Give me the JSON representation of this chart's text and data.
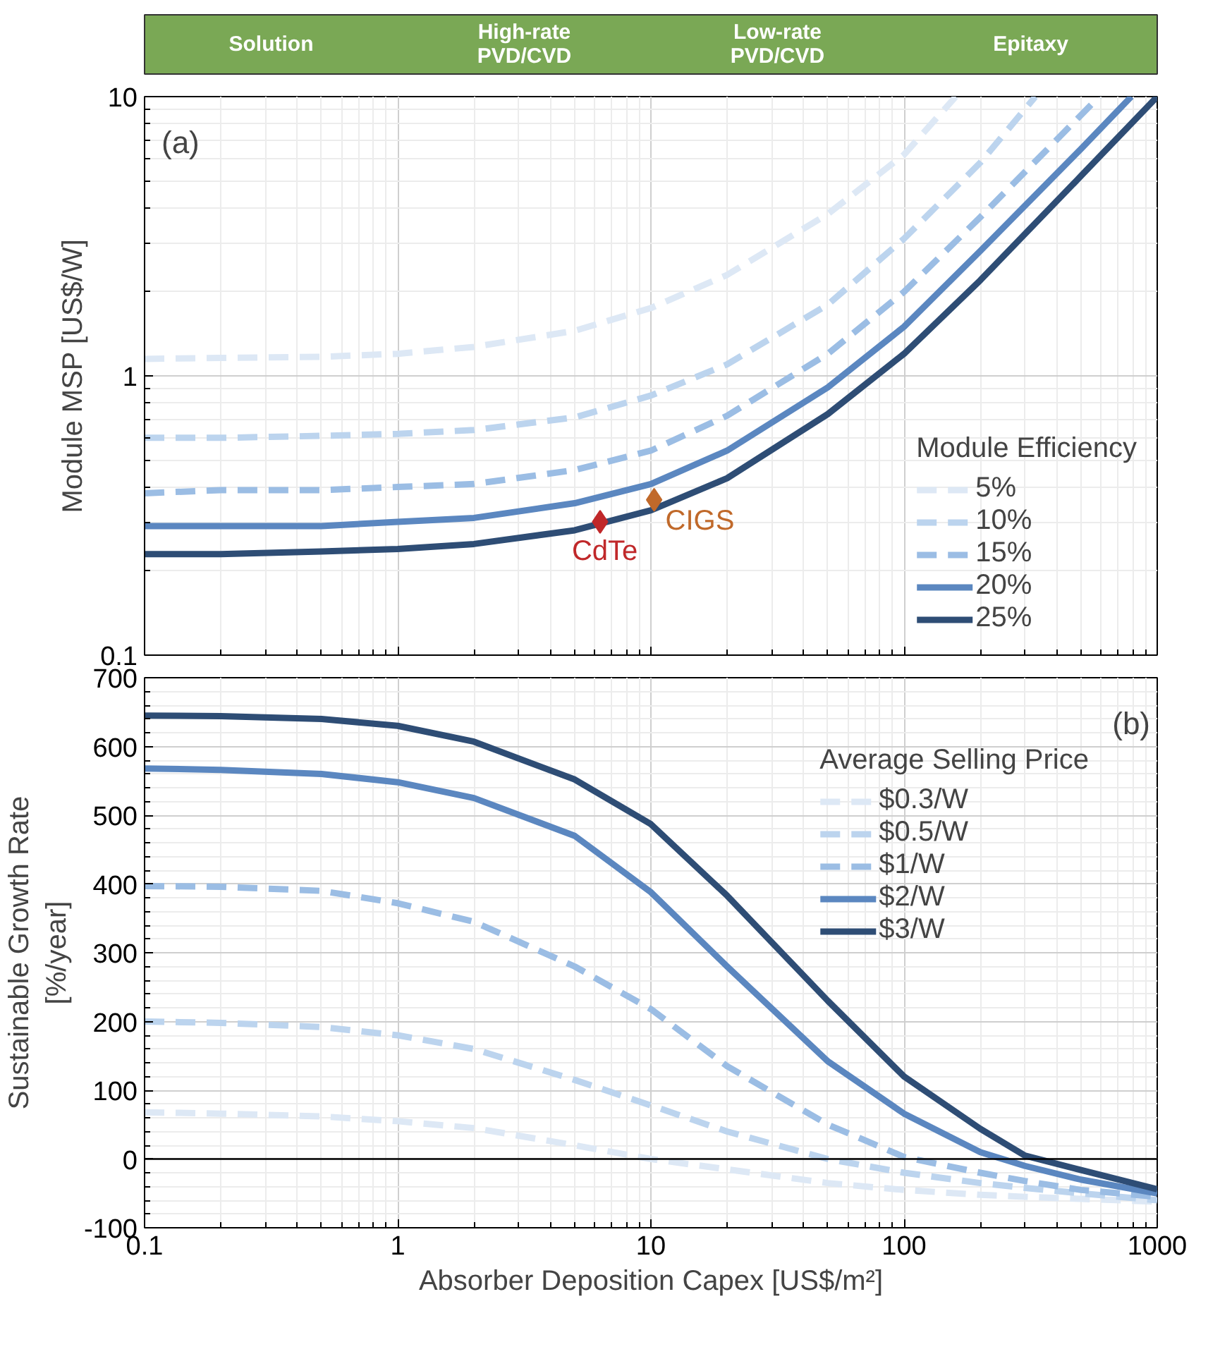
{
  "chart_data": [
    {
      "type": "other",
      "annotations": [
        "Solution",
        "High-rate\nPVD/CVD",
        "Low-rate\nPVD/CVD",
        "Epitaxy"
      ]
    },
    {
      "type": "line",
      "ylabel": "Module MSP [US$/W]",
      "log": "xy",
      "xlim": [
        0.1,
        1000
      ],
      "ylim": [
        0.1,
        10
      ],
      "xticks": [
        0.1,
        1,
        10,
        100,
        1000
      ],
      "yticks": [
        0.1,
        1,
        10
      ],
      "grid": true,
      "tick_labels": "y",
      "legend": "bottom right",
      "legend_title": "Module Efficiency",
      "annotations": [
        "(a)"
      ],
      "series": [
        {
          "name": "5%",
          "color": "#dde8f5",
          "line_style": "dashed",
          "x": [
            0.1,
            0.2,
            0.5,
            1,
            2,
            5,
            10,
            20,
            50,
            100,
            160
          ],
          "values": [
            1.15,
            1.16,
            1.17,
            1.2,
            1.27,
            1.45,
            1.75,
            2.3,
            3.8,
            6.2,
            10
          ]
        },
        {
          "name": "10%",
          "color": "#bcd4ee",
          "line_style": "dashed",
          "x": [
            0.1,
            0.2,
            0.5,
            1,
            2,
            5,
            10,
            20,
            50,
            100,
            200,
            330
          ],
          "values": [
            0.6,
            0.6,
            0.61,
            0.62,
            0.64,
            0.71,
            0.85,
            1.1,
            1.8,
            3.1,
            5.8,
            10
          ]
        },
        {
          "name": "15%",
          "color": "#9bbde4",
          "line_style": "dashed",
          "x": [
            0.1,
            0.2,
            0.5,
            1,
            2,
            5,
            10,
            20,
            50,
            100,
            200,
            590
          ],
          "values": [
            0.38,
            0.39,
            0.39,
            0.4,
            0.41,
            0.46,
            0.54,
            0.72,
            1.2,
            2.0,
            3.7,
            10
          ]
        },
        {
          "name": "20%",
          "color": "#5b87c0",
          "line_style": "solid",
          "x": [
            0.1,
            0.2,
            0.5,
            1,
            2,
            5,
            10,
            20,
            50,
            100,
            200,
            500,
            790
          ],
          "values": [
            0.29,
            0.29,
            0.29,
            0.3,
            0.31,
            0.35,
            0.41,
            0.54,
            0.91,
            1.5,
            2.8,
            6.5,
            10
          ]
        },
        {
          "name": "25%",
          "color": "#2e4d75",
          "line_style": "solid",
          "x": [
            0.1,
            0.2,
            0.5,
            1,
            2,
            5,
            10,
            20,
            50,
            100,
            200,
            500,
            1000
          ],
          "values": [
            0.23,
            0.23,
            0.235,
            0.24,
            0.25,
            0.28,
            0.33,
            0.43,
            0.73,
            1.2,
            2.2,
            5.2,
            10
          ]
        },
        {
          "name": "CdTe",
          "type": "scatter",
          "marker": "diamond",
          "color": "#c0282a",
          "x": [
            6.3
          ],
          "values": [
            0.3
          ]
        },
        {
          "name": "CIGS",
          "type": "scatter",
          "marker": "diamond",
          "color": "#c0692a",
          "x": [
            10.3
          ],
          "values": [
            0.36
          ]
        }
      ]
    },
    {
      "type": "line",
      "xlabel": "Absorber Deposition Capex [US$/m²]",
      "ylabel": "Sustainable Growth Rate\n[%/year]",
      "log": "x",
      "xlim": [
        0.1,
        1000
      ],
      "ylim": [
        -100,
        700
      ],
      "xticks": [
        0.1,
        1,
        10,
        100,
        1000
      ],
      "yticks": [
        -100,
        0,
        100,
        200,
        300,
        400,
        500,
        600,
        700
      ],
      "grid": true,
      "legend": "top right",
      "legend_title": "Average Selling Price",
      "annotations": [
        "(b)"
      ],
      "ref_lines": [
        {
          "axis": "y",
          "value": 0,
          "color": "#000000"
        }
      ],
      "x": [
        0.1,
        0.2,
        0.5,
        1,
        2,
        5,
        10,
        20,
        50,
        100,
        200,
        300,
        500,
        1000
      ],
      "series": [
        {
          "name": "$0.3/W",
          "color": "#dde8f5",
          "line_style": "dashed",
          "values": [
            68,
            66,
            62,
            55,
            45,
            20,
            0,
            -15,
            -35,
            -45,
            -52,
            -55,
            -58,
            -62
          ]
        },
        {
          "name": "$0.5/W",
          "color": "#bcd4ee",
          "line_style": "dashed",
          "values": [
            200,
            198,
            192,
            180,
            160,
            115,
            78,
            40,
            0,
            -20,
            -35,
            -42,
            -50,
            -60
          ]
        },
        {
          "name": "$1/W",
          "color": "#9bbde4",
          "line_style": "dashed",
          "values": [
            397,
            396,
            390,
            372,
            345,
            280,
            218,
            135,
            50,
            3,
            -20,
            -32,
            -45,
            -55
          ]
        },
        {
          "name": "$2/W",
          "color": "#5b87c0",
          "line_style": "solid",
          "values": [
            568,
            566,
            560,
            548,
            525,
            470,
            388,
            280,
            142,
            66,
            10,
            -10,
            -30,
            -50
          ]
        },
        {
          "name": "$3/W",
          "color": "#2e4d75",
          "line_style": "solid",
          "values": [
            645,
            644,
            640,
            630,
            607,
            552,
            487,
            383,
            230,
            120,
            44,
            5,
            -16,
            -44
          ]
        }
      ]
    }
  ]
}
